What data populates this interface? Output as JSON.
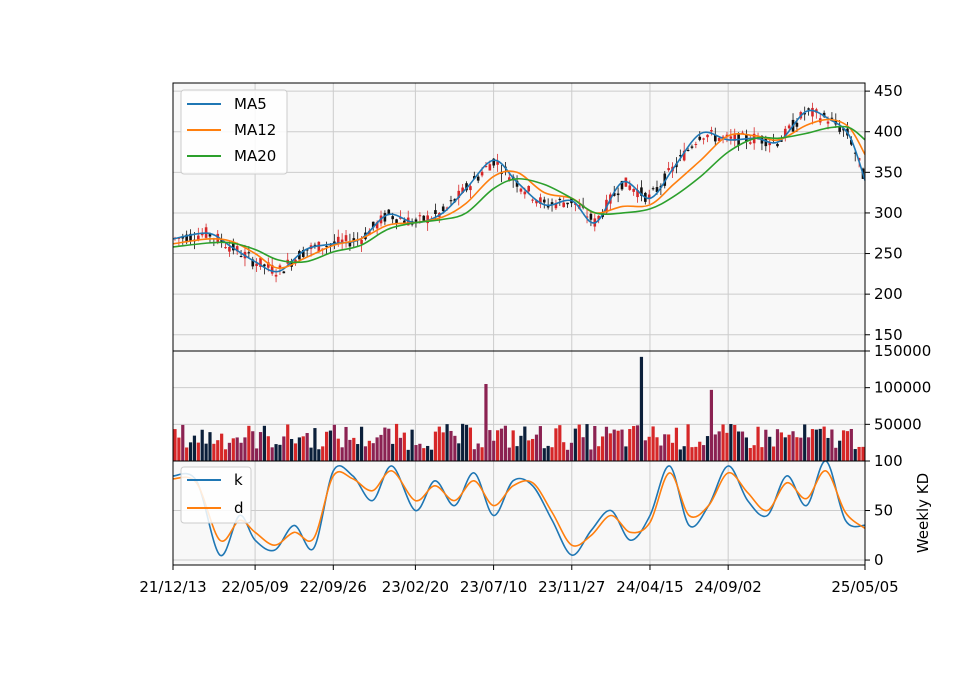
{
  "chart_data": [
    {
      "type": "candlestick",
      "panel": "price",
      "title": "",
      "ylim": [
        130,
        460
      ],
      "yticks": [
        150,
        200,
        250,
        300,
        350,
        400,
        450
      ],
      "grid": true,
      "legend_position": "upper-left",
      "series": [
        {
          "name": "MA5",
          "color": "#1f77b4",
          "x": [
            "21/12/13",
            "22/02/14",
            "22/03/28",
            "22/05/09",
            "22/06/20",
            "22/08/08",
            "22/09/26",
            "22/11/14",
            "23/01/02",
            "23/02/20",
            "23/04/10",
            "23/05/22",
            "23/07/10",
            "23/08/21",
            "23/10/09",
            "23/11/27",
            "24/01/08",
            "24/02/26",
            "24/04/15",
            "24/05/27",
            "24/07/15",
            "24/09/02",
            "24/10/21",
            "24/12/02",
            "25/01/20",
            "25/03/03",
            "25/04/07",
            "25/05/05"
          ],
          "values": [
            268,
            275,
            258,
            240,
            228,
            255,
            262,
            268,
            298,
            288,
            300,
            330,
            365,
            338,
            310,
            315,
            288,
            338,
            318,
            355,
            398,
            390,
            392,
            388,
            425,
            415,
            395,
            340
          ]
        },
        {
          "name": "MA12",
          "color": "#ff7f0e",
          "x": [
            "21/12/13",
            "22/02/14",
            "22/03/28",
            "22/05/09",
            "22/06/20",
            "22/08/08",
            "22/09/26",
            "22/11/14",
            "23/01/02",
            "23/02/20",
            "23/04/10",
            "23/05/22",
            "23/07/10",
            "23/08/21",
            "23/10/09",
            "23/11/27",
            "24/01/08",
            "24/02/26",
            "24/04/15",
            "24/05/27",
            "24/07/15",
            "24/09/02",
            "24/10/21",
            "24/12/02",
            "25/01/20",
            "25/03/03",
            "25/04/07",
            "25/05/05"
          ],
          "values": [
            262,
            268,
            265,
            250,
            232,
            245,
            260,
            268,
            285,
            288,
            295,
            312,
            345,
            350,
            325,
            318,
            300,
            308,
            310,
            335,
            365,
            395,
            395,
            390,
            408,
            415,
            405,
            372
          ]
        },
        {
          "name": "MA20",
          "color": "#2ca02c",
          "x": [
            "21/12/13",
            "22/02/14",
            "22/03/28",
            "22/05/09",
            "22/06/20",
            "22/08/08",
            "22/09/26",
            "22/11/14",
            "23/01/02",
            "23/02/20",
            "23/04/10",
            "23/05/22",
            "23/07/10",
            "23/08/21",
            "23/10/09",
            "23/11/27",
            "24/01/08",
            "24/02/26",
            "24/04/15",
            "24/05/27",
            "24/07/15",
            "24/09/02",
            "24/10/21",
            "24/12/02",
            "25/01/20",
            "25/03/03",
            "25/04/07",
            "25/05/05"
          ],
          "values": [
            258,
            263,
            263,
            255,
            242,
            240,
            252,
            260,
            280,
            288,
            292,
            300,
            330,
            342,
            335,
            318,
            300,
            300,
            305,
            320,
            345,
            375,
            392,
            392,
            398,
            405,
            405,
            390
          ]
        }
      ]
    },
    {
      "type": "bar",
      "panel": "volume",
      "ylim": [
        0,
        150000
      ],
      "yticks": [
        50000,
        100000,
        150000
      ],
      "grid": true,
      "colors": {
        "up": "#d62728",
        "down": "#0b1f3a",
        "neutral": "#8b2252"
      },
      "peaks": [
        {
          "x": "23/06/26",
          "value": 105000
        },
        {
          "x": "24/04/01",
          "value": 142000
        },
        {
          "x": "24/08/05",
          "value": 97000
        }
      ],
      "typical_range": [
        15000,
        60000
      ]
    },
    {
      "type": "line",
      "panel": "kd",
      "ylabel": "Weekly KD",
      "ylim": [
        -5,
        100
      ],
      "yticks": [
        0,
        50,
        100
      ],
      "grid": true,
      "legend_position": "upper-left",
      "series": [
        {
          "name": "k",
          "color": "#1f77b4",
          "x": [
            "21/12/13",
            "22/01/24",
            "22/03/07",
            "22/04/11",
            "22/05/09",
            "22/06/13",
            "22/07/18",
            "22/08/22",
            "22/09/26",
            "22/10/31",
            "22/12/05",
            "23/01/09",
            "23/02/20",
            "23/03/27",
            "23/05/01",
            "23/06/05",
            "23/07/10",
            "23/08/14",
            "23/09/18",
            "23/10/23",
            "23/11/27",
            "24/01/01",
            "24/02/05",
            "24/03/11",
            "24/04/15",
            "24/05/20",
            "24/06/24",
            "24/07/29",
            "24/09/02",
            "24/10/07",
            "24/11/11",
            "24/12/16",
            "25/01/20",
            "25/02/24",
            "25/03/31",
            "25/05/05"
          ],
          "values": [
            85,
            80,
            5,
            45,
            20,
            10,
            35,
            12,
            90,
            85,
            60,
            95,
            50,
            80,
            55,
            88,
            45,
            80,
            75,
            40,
            5,
            30,
            50,
            20,
            45,
            95,
            35,
            55,
            95,
            60,
            45,
            85,
            55,
            100,
            40,
            35
          ]
        },
        {
          "name": "d",
          "color": "#ff7f0e",
          "x": [
            "21/12/13",
            "22/01/24",
            "22/03/07",
            "22/04/11",
            "22/05/09",
            "22/06/13",
            "22/07/18",
            "22/08/22",
            "22/09/26",
            "22/10/31",
            "22/12/05",
            "23/01/09",
            "23/02/20",
            "23/03/27",
            "23/05/01",
            "23/06/05",
            "23/07/10",
            "23/08/14",
            "23/09/18",
            "23/10/23",
            "23/11/27",
            "24/01/01",
            "24/02/05",
            "24/03/11",
            "24/04/15",
            "24/05/20",
            "24/06/24",
            "24/07/29",
            "24/09/02",
            "24/10/07",
            "24/11/11",
            "24/12/16",
            "25/01/20",
            "25/02/24",
            "25/03/31",
            "25/05/05"
          ],
          "values": [
            82,
            78,
            20,
            40,
            28,
            15,
            28,
            22,
            85,
            82,
            70,
            90,
            60,
            75,
            60,
            80,
            55,
            75,
            78,
            48,
            15,
            25,
            45,
            28,
            38,
            88,
            45,
            55,
            88,
            68,
            50,
            78,
            62,
            90,
            48,
            32
          ]
        }
      ]
    }
  ],
  "xaxis": {
    "ticks": [
      "21/12/13",
      "22/05/09",
      "22/09/26",
      "23/02/20",
      "23/07/10",
      "23/11/27",
      "24/04/15",
      "24/09/02",
      "25/05/05"
    ]
  }
}
